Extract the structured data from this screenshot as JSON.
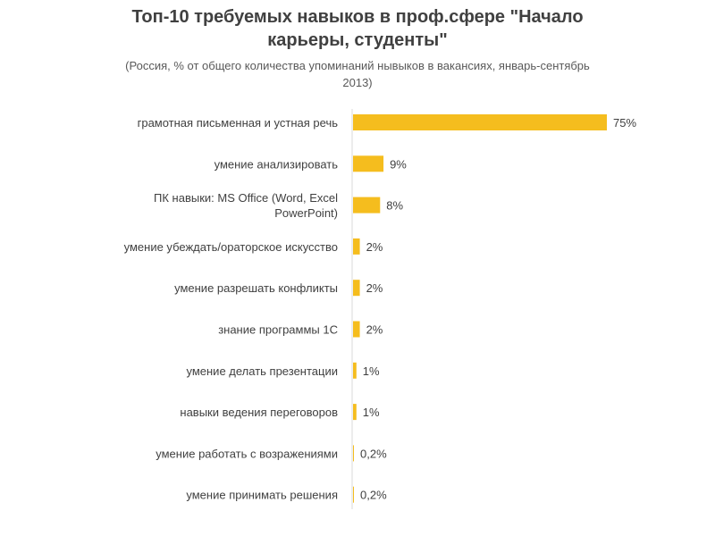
{
  "title": "Топ-10 требуемых навыков в проф.сфере \"Начало карьеры, студенты\"",
  "subtitle": "(Россия, % от общего количества упоминаний нывыков в вакансиях, январь-сентябрь 2013)",
  "chart_data": {
    "type": "bar",
    "orientation": "horizontal",
    "bar_color": "#F5BD1E",
    "categories": [
      [
        "грамотная письменная и устная речь"
      ],
      [
        "умение анализировать"
      ],
      [
        "ПК навыки: MS Office (Word, Excel",
        "PowerPoint)"
      ],
      [
        "умение убеждать/ораторское искусство"
      ],
      [
        "умение разрешать конфликты"
      ],
      [
        "знание программы 1С"
      ],
      [
        "умение делать презентации"
      ],
      [
        "навыки ведения переговоров"
      ],
      [
        "умение работать с возражениями"
      ],
      [
        "умение принимать решения"
      ]
    ],
    "values": [
      75,
      9,
      8,
      2,
      2,
      2,
      1,
      1,
      0.2,
      0.2
    ],
    "value_labels": [
      "75%",
      "9%",
      "8%",
      "2%",
      "2%",
      "2%",
      "1%",
      "1%",
      "0,2%",
      "0,2%"
    ],
    "xlim": [
      0,
      75
    ],
    "grid": false,
    "legend": "none"
  }
}
